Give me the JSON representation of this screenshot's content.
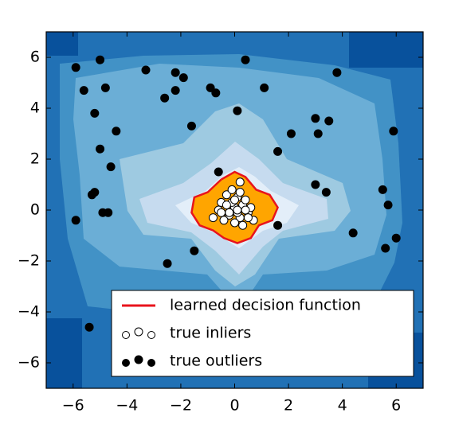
{
  "chart_data": {
    "type": "scatter",
    "xlim": [
      -7,
      7
    ],
    "ylim": [
      -7,
      7
    ],
    "xticks": [
      {
        "value": -6,
        "label": "−6"
      },
      {
        "value": -4,
        "label": "−4"
      },
      {
        "value": -2,
        "label": "−2"
      },
      0,
      2,
      4,
      6
    ],
    "yticks": [
      {
        "value": -6,
        "label": "−6"
      },
      {
        "value": -4,
        "label": "−4"
      },
      {
        "value": -2,
        "label": "−2"
      },
      0,
      2,
      4,
      6
    ],
    "legend": "lower right",
    "series": [
      {
        "name": "learned decision function",
        "kind": "line",
        "color": "#e8141c",
        "fill": "#ffa500",
        "x": [
          -0.5,
          0,
          0.4,
          0.8,
          1.3,
          1.6,
          1.4,
          0.9,
          0.6,
          0.1,
          -0.4,
          -0.8,
          -1.3,
          -1.6,
          -1.5,
          -1.0,
          -0.5
        ],
        "y": [
          1.2,
          1.5,
          1.3,
          0.8,
          0.6,
          0.1,
          -0.4,
          -0.6,
          -1.1,
          -1.3,
          -1.1,
          -0.8,
          -0.6,
          -0.1,
          0.5,
          0.7,
          1.2
        ]
      },
      {
        "name": "true inliers",
        "kind": "points",
        "color": "#ffffff",
        "x": [
          -0.8,
          -0.5,
          -0.3,
          -0.1,
          0.1,
          0.3,
          0.5,
          0.7,
          -0.6,
          -0.2,
          0.0,
          0.2,
          0.4,
          0.6,
          -0.4,
          -0.1,
          0.1,
          0.3,
          -0.3,
          0.0,
          0.2,
          0.5,
          -0.5,
          0.1,
          0.2,
          -0.2,
          0.4,
          0.0
        ],
        "y": [
          -0.3,
          0.3,
          0.6,
          0.8,
          0.5,
          0.2,
          -0.1,
          -0.4,
          0.0,
          -0.2,
          0.1,
          -0.3,
          0.4,
          0.1,
          -0.4,
          0.3,
          -0.1,
          -0.6,
          0.2,
          -0.5,
          0.7,
          -0.3,
          -0.1,
          0.0,
          1.1,
          -0.1,
          0.0,
          0.4
        ]
      },
      {
        "name": "true outliers",
        "kind": "points",
        "color": "#000000",
        "x": [
          -5.9,
          -5.0,
          -5.6,
          -4.8,
          -3.3,
          -2.2,
          -1.9,
          -2.2,
          -2.6,
          -0.9,
          -0.7,
          0.4,
          1.1,
          3.8,
          -5.2,
          0.1,
          -1.6,
          -4.4,
          2.1,
          3.0,
          3.1,
          3.5,
          5.9,
          -5.0,
          -4.6,
          1.6,
          -0.6,
          3.0,
          3.4,
          5.5,
          5.7,
          -5.3,
          -5.2,
          -4.9,
          -4.7,
          -5.9,
          1.6,
          4.4,
          6.0,
          5.6,
          -1.5,
          -2.5,
          -5.4
        ],
        "y": [
          5.6,
          5.9,
          4.7,
          4.8,
          5.5,
          5.4,
          5.2,
          4.7,
          4.4,
          4.8,
          4.6,
          5.9,
          4.8,
          5.4,
          3.8,
          3.9,
          3.3,
          3.1,
          3.0,
          3.6,
          3.0,
          3.5,
          3.1,
          2.4,
          1.7,
          2.3,
          1.5,
          1.0,
          0.7,
          0.8,
          0.2,
          0.6,
          0.7,
          -0.1,
          -0.1,
          -0.4,
          -0.6,
          -0.9,
          -1.1,
          -1.5,
          -1.6,
          -2.1,
          -4.6
        ]
      }
    ]
  }
}
